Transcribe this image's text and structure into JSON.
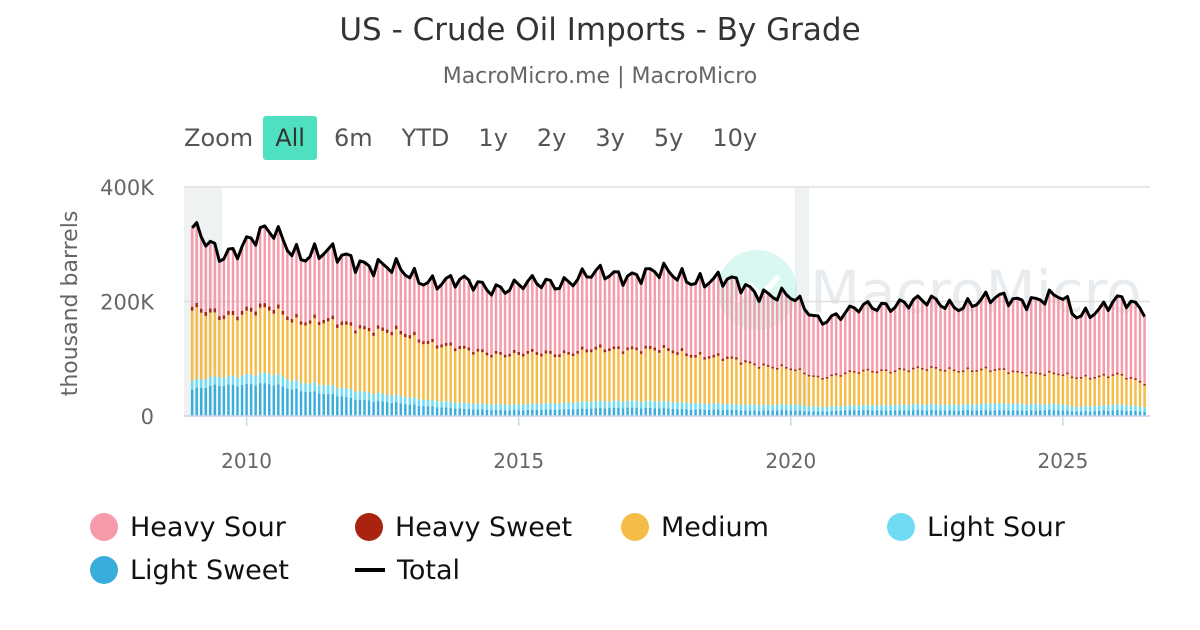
{
  "header": {
    "title": "US - Crude Oil Imports - By Grade",
    "subtitle": "MacroMicro.me | MacroMicro"
  },
  "zoom": {
    "label": "Zoom",
    "buttons": [
      "All",
      "6m",
      "YTD",
      "1y",
      "2y",
      "3y",
      "5y",
      "10y"
    ],
    "active": "All"
  },
  "watermark": "MacroMicro",
  "chart_data": {
    "type": "bar",
    "stacked": true,
    "xlabel": "",
    "ylabel": "thousand barrels",
    "xlim": [
      2008.85,
      2026.6
    ],
    "ylim": [
      0,
      400000
    ],
    "y_ticks": [
      0,
      200000,
      400000
    ],
    "y_tick_labels": [
      "0",
      "200K",
      "400K"
    ],
    "x_ticks": [
      2010,
      2015,
      2020,
      2025
    ],
    "x_tick_labels": [
      "2010",
      "2015",
      "2020",
      "2025"
    ],
    "frequency": "monthly",
    "x_start": "2009-01",
    "grid": true,
    "legend_position": "bottom",
    "anchors": [
      {
        "x": 2009.0,
        "total": 320000,
        "light_sweet": 45000,
        "light_sour": 15000,
        "medium": 120000,
        "heavy_sweet": 7000
      },
      {
        "x": 2009.5,
        "total": 285000,
        "light_sweet": 55000,
        "light_sour": 15000,
        "medium": 105000,
        "heavy_sweet": 7000
      },
      {
        "x": 2010.5,
        "total": 320000,
        "light_sweet": 55000,
        "light_sour": 18000,
        "medium": 110000,
        "heavy_sweet": 7000
      },
      {
        "x": 2011.0,
        "total": 285000,
        "light_sweet": 45000,
        "light_sour": 15000,
        "medium": 105000,
        "heavy_sweet": 6000
      },
      {
        "x": 2012.0,
        "total": 275000,
        "light_sweet": 30000,
        "light_sour": 15000,
        "medium": 110000,
        "heavy_sweet": 6000
      },
      {
        "x": 2013.0,
        "total": 245000,
        "light_sweet": 20000,
        "light_sour": 12000,
        "medium": 105000,
        "heavy_sweet": 6000
      },
      {
        "x": 2014.0,
        "total": 230000,
        "light_sweet": 12000,
        "light_sour": 10000,
        "medium": 90000,
        "heavy_sweet": 5000
      },
      {
        "x": 2015.0,
        "total": 225000,
        "light_sweet": 10000,
        "light_sour": 10000,
        "medium": 85000,
        "heavy_sweet": 5000
      },
      {
        "x": 2016.0,
        "total": 240000,
        "light_sweet": 12000,
        "light_sour": 12000,
        "medium": 85000,
        "heavy_sweet": 5000
      },
      {
        "x": 2017.0,
        "total": 250000,
        "light_sweet": 15000,
        "light_sour": 12000,
        "medium": 90000,
        "heavy_sweet": 5000
      },
      {
        "x": 2018.0,
        "total": 245000,
        "light_sweet": 12000,
        "light_sour": 12000,
        "medium": 85000,
        "heavy_sweet": 5000
      },
      {
        "x": 2019.0,
        "total": 230000,
        "light_sweet": 10000,
        "light_sour": 10000,
        "medium": 75000,
        "heavy_sweet": 4000
      },
      {
        "x": 2020.0,
        "total": 205000,
        "light_sweet": 10000,
        "light_sour": 10000,
        "medium": 60000,
        "heavy_sweet": 3000
      },
      {
        "x": 2020.5,
        "total": 170000,
        "light_sweet": 8000,
        "light_sour": 8000,
        "medium": 50000,
        "heavy_sweet": 3000
      },
      {
        "x": 2021.0,
        "total": 180000,
        "light_sweet": 10000,
        "light_sour": 8000,
        "medium": 55000,
        "heavy_sweet": 3000
      },
      {
        "x": 2022.0,
        "total": 200000,
        "light_sweet": 10000,
        "light_sour": 10000,
        "medium": 60000,
        "heavy_sweet": 3000
      },
      {
        "x": 2023.0,
        "total": 195000,
        "light_sweet": 10000,
        "light_sour": 10000,
        "medium": 60000,
        "heavy_sweet": 3000
      },
      {
        "x": 2024.0,
        "total": 205000,
        "light_sweet": 10000,
        "light_sour": 12000,
        "medium": 55000,
        "heavy_sweet": 3000
      },
      {
        "x": 2025.0,
        "total": 205000,
        "light_sweet": 10000,
        "light_sour": 10000,
        "medium": 50000,
        "heavy_sweet": 3000
      },
      {
        "x": 2025.2,
        "total": 175000,
        "light_sweet": 8000,
        "light_sour": 8000,
        "medium": 50000,
        "heavy_sweet": 3000
      },
      {
        "x": 2026.0,
        "total": 200000,
        "light_sweet": 10000,
        "light_sour": 10000,
        "medium": 50000,
        "heavy_sweet": 3000
      },
      {
        "x": 2026.5,
        "total": 185000,
        "light_sweet": 8000,
        "light_sour": 8000,
        "medium": 40000,
        "heavy_sweet": 3000
      }
    ],
    "series": [
      {
        "name": "Heavy Sour",
        "key": "heavy_sour",
        "color": "#f59ba9"
      },
      {
        "name": "Heavy Sweet",
        "key": "heavy_sweet",
        "color": "#a82410"
      },
      {
        "name": "Medium",
        "key": "medium",
        "color": "#f5bc47"
      },
      {
        "name": "Light Sour",
        "key": "light_sour",
        "color": "#6fdcf3"
      },
      {
        "name": "Light Sweet",
        "key": "light_sweet",
        "color": "#3aaedb"
      },
      {
        "name": "Total",
        "key": "total",
        "color": "#000000",
        "type": "line"
      }
    ]
  }
}
